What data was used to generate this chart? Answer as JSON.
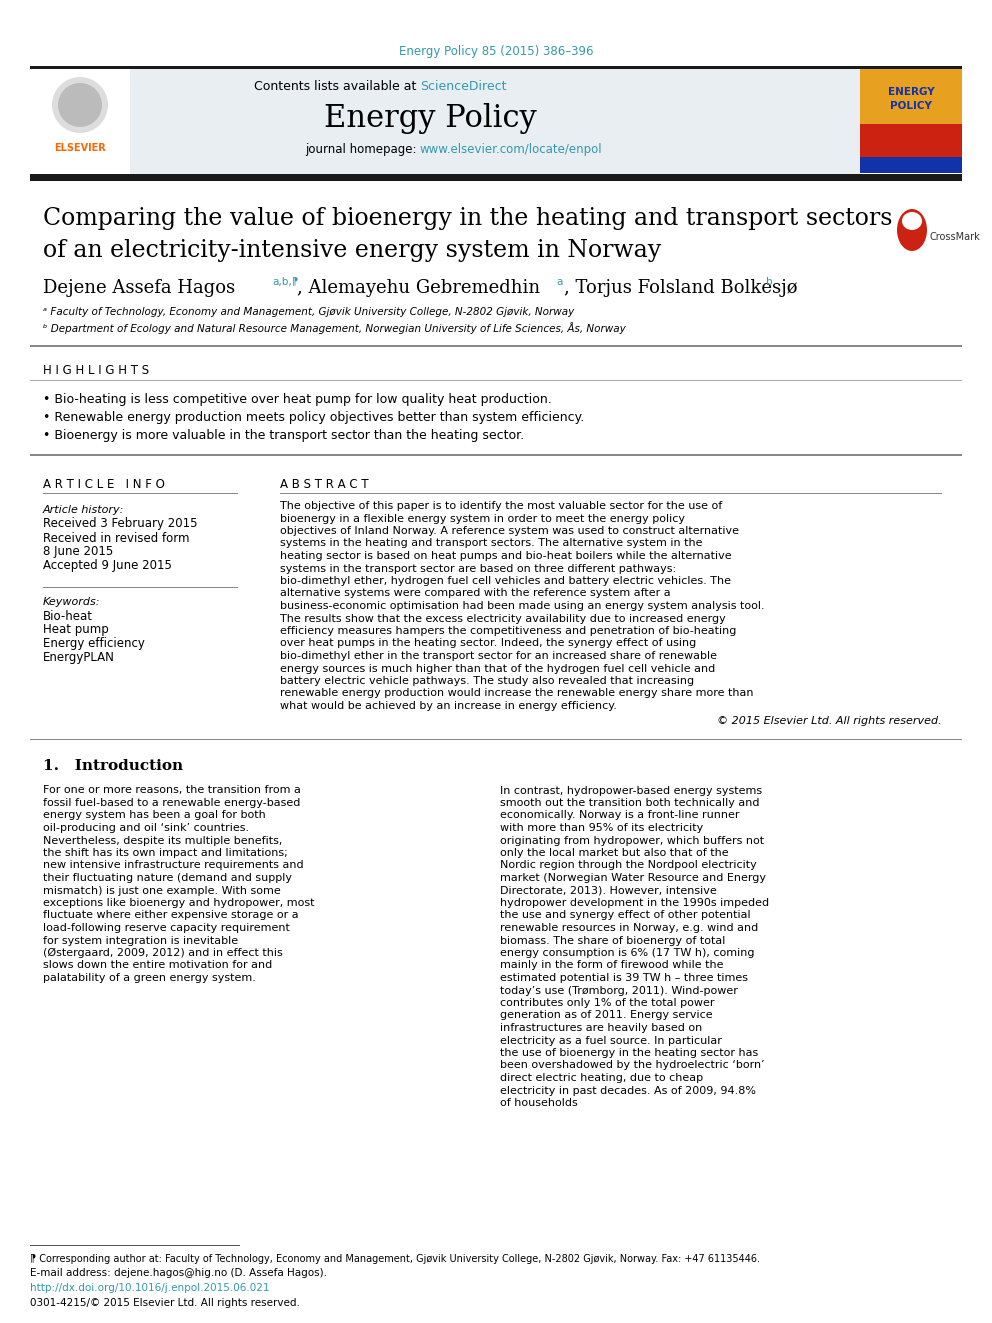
{
  "journal_ref": "Energy Policy 85 (2015) 386–396",
  "journal_ref_color": "#3399aa",
  "header_link_color": "#3399aa",
  "header_bg": "#e8eef2",
  "title_line1": "Comparing the value of bioenergy in the heating and transport sectors",
  "title_line2": "of an electricity-intensive energy system in Norway",
  "affil_a": "ᵃ Faculty of Technology, Economy and Management, Gjøvik University College, N-2802 Gjøvik, Norway",
  "affil_b": "ᵇ Department of Ecology and Natural Resource Management, Norwegian University of Life Sciences, Ås, Norway",
  "highlights_title": "H I G H L I G H T S",
  "highlights": [
    "Bio-heating is less competitive over heat pump for low quality heat production.",
    "Renewable energy production meets policy objectives better than system efficiency.",
    "Bioenergy is more valuable in the transport sector than the heating sector."
  ],
  "article_info_title": "A R T I C L E   I N F O",
  "article_history_label": "Article history:",
  "article_history": [
    "Received 3 February 2015",
    "Received in revised form",
    "8 June 2015",
    "Accepted 9 June 2015"
  ],
  "keywords_label": "Keywords:",
  "keywords": [
    "Bio-heat",
    "Heat pump",
    "Energy efficiency",
    "EnergyPLAN"
  ],
  "abstract_title": "A B S T R A C T",
  "abstract_text": "The objective of this paper is to identify the most valuable sector for the use of bioenergy in a flexible energy system in order to meet the energy policy objectives of Inland Norway. A reference system was used to construct alternative systems in the heating and transport sectors. The alternative system in the heating sector is based on heat pumps and bio-heat boilers while the alternative systems in the transport sector are based on three different pathways: bio-dimethyl ether, hydrogen fuel cell vehicles and battery electric vehicles. The alternative systems were compared with the reference system after a business-economic optimisation had been made using an energy system analysis tool. The results show that the excess electricity availability due to increased energy efficiency measures hampers the competitiveness and penetration of bio-heating over heat pumps in the heating sector. Indeed, the synergy effect of using bio-dimethyl ether in the transport sector for an increased share of renewable energy sources is much higher than that of the hydrogen fuel cell vehicle and battery electric vehicle pathways. The study also revealed that increasing renewable energy production would increase the renewable energy share more than what would be achieved by an increase in energy efficiency.",
  "copyright": "© 2015 Elsevier Ltd. All rights reserved.",
  "section1_title": "1.   Introduction",
  "intro_left": "For one or more reasons, the transition from a fossil fuel-based to a renewable energy-based energy system has been a goal for both oil-producing and oil ‘sink’ countries. Nevertheless, despite its multiple benefits, the shift has its own impact and limitations; new intensive infrastructure requirements and their fluctuating nature (demand and supply mismatch) is just one example. With some exceptions like bioenergy and hydropower, most fluctuate where either expensive storage or a load-following reserve capacity requirement for system integration is inevitable (Østergaard, 2009, 2012) and in effect this slows down the entire motivation for and palatability of a green energy system.",
  "intro_right": "In contrast, hydropower-based energy systems smooth out the transition both technically and economically. Norway is a front-line runner with more than 95% of its electricity originating from hydropower, which buffers not only the local market but also that of the Nordic region through the Nordpool electricity market (Norwegian Water Resource and Energy Directorate, 2013). However, intensive hydropower development in the 1990s impeded the use and synergy effect of other potential renewable resources in Norway, e.g. wind and biomass. The share of bioenergy of total energy consumption is 6% (17 TW h), coming mainly in the form of firewood while the estimated potential is 39 TW h – three times today’s use (Trømborg, 2011). Wind-power contributes only 1% of the total power generation as of 2011. Energy service infrastructures are heavily based on electricity as a fuel source. In particular the use of bioenergy in the heating sector has been overshadowed by the hydroelectric ‘born’ direct electric heating, due to cheap electricity in past decades. As of 2009, 94.8% of households",
  "footnote_star": "⁋ Corresponding author at: Faculty of Technology, Economy and Management, Gjøvik University College, N-2802 Gjøvik, Norway. Fax: +47 61135446.",
  "footnote_email": "E-mail address: dejene.hagos@hig.no (D. Assefa Hagos).",
  "doi": "http://dx.doi.org/10.1016/j.enpol.2015.06.021",
  "issn": "0301-4215/© 2015 Elsevier Ltd. All rights reserved.",
  "elsevier_color": "#ff6600",
  "link_color": "#3399aa",
  "black_bar_color": "#1a1a1a",
  "bg_white": "#ffffff"
}
